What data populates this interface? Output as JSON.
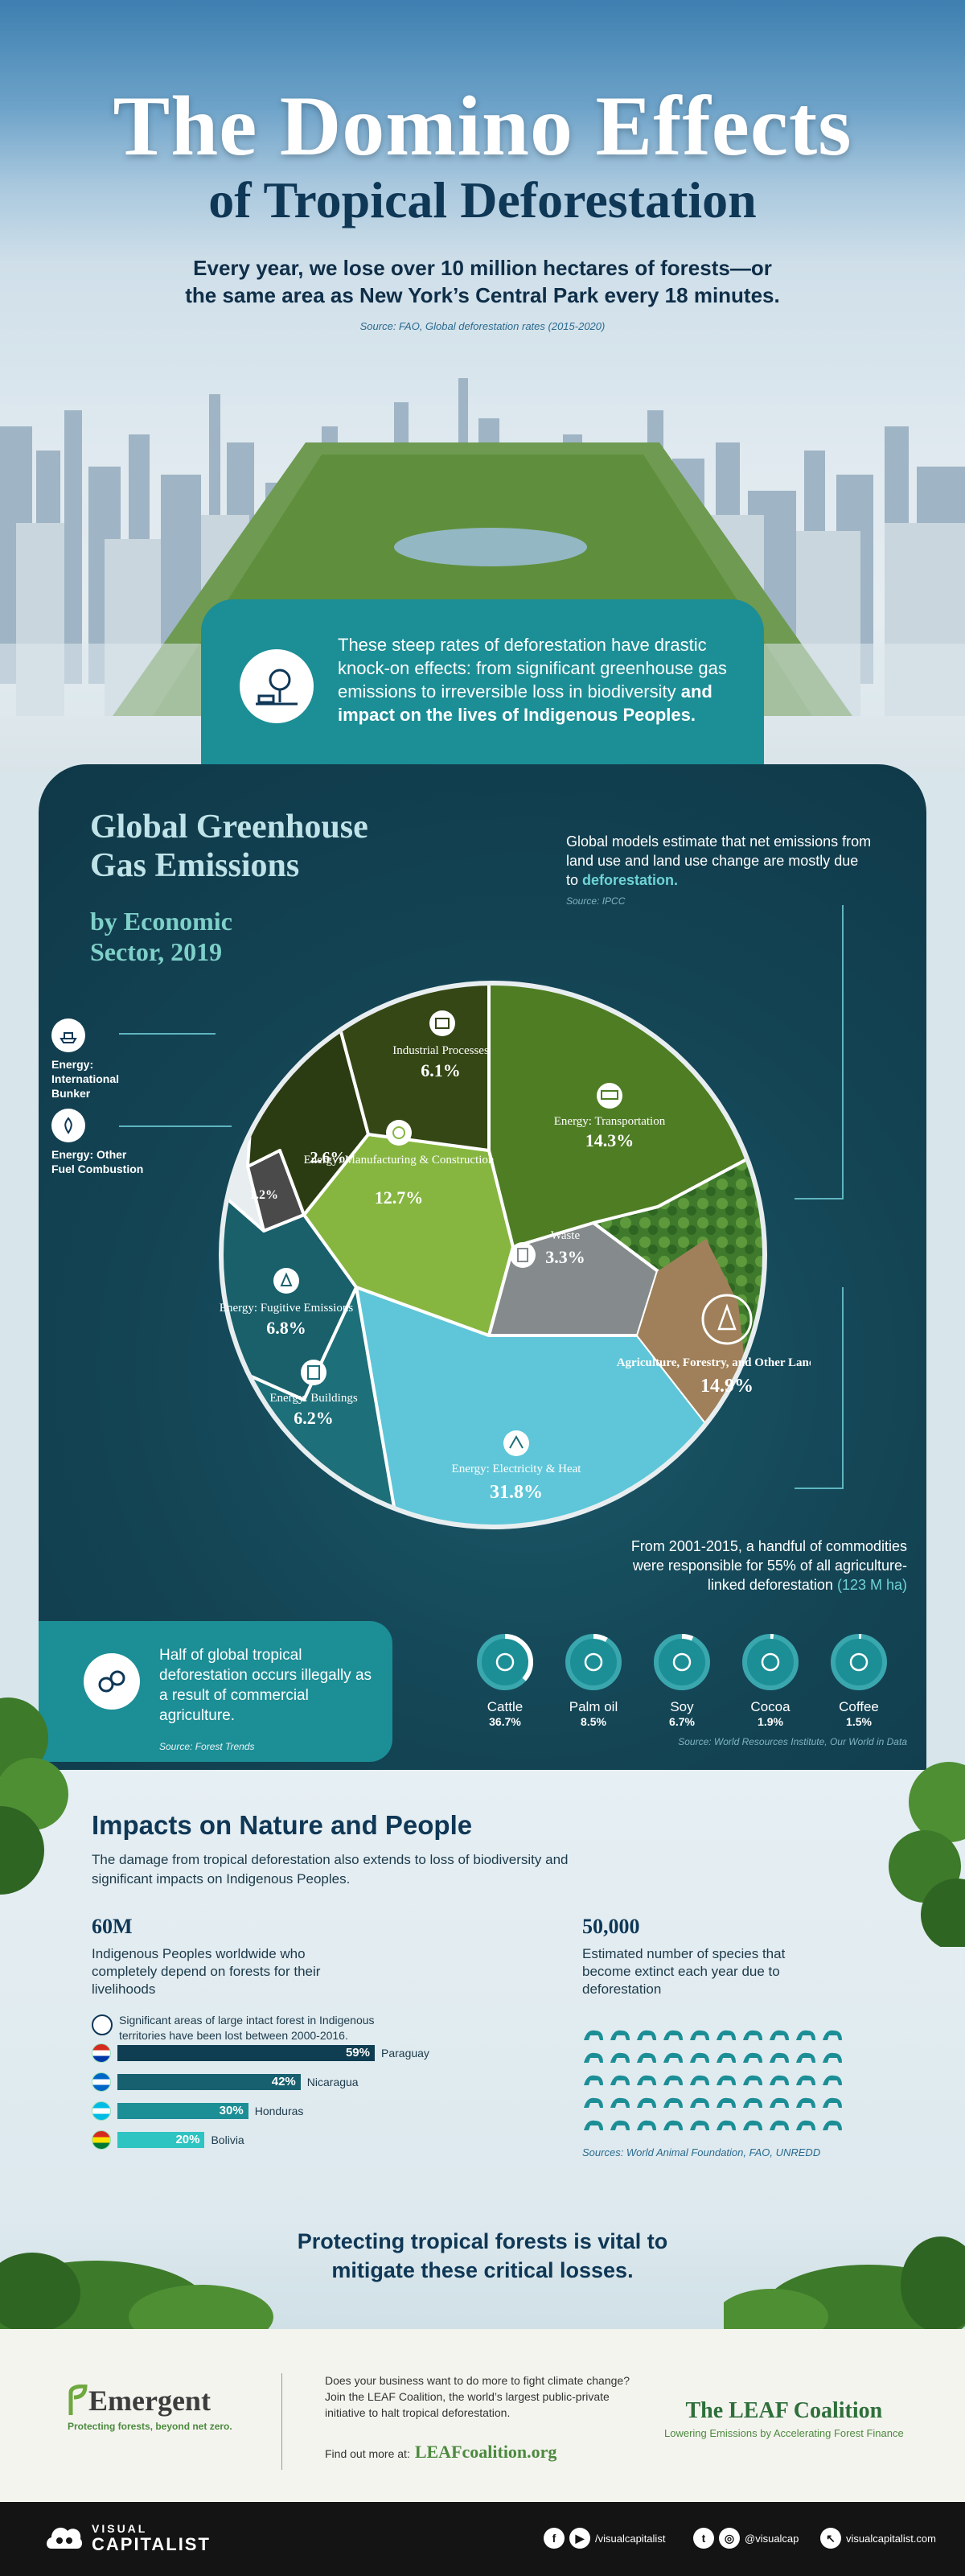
{
  "hero": {
    "title": "The Domino Effects",
    "subtitle": "of Tropical Deforestation",
    "lede": "Every year, we lose over 10 million hectares of forests—or the same area as New York’s Central Park every 18 minutes.",
    "source": "Source: FAO, Global deforestation rates (2015-2020)"
  },
  "intro": {
    "text": "These steep rates of deforestation have drastic knock-on effects: from significant greenhouse gas emissions to irreversible loss in biodiversity ",
    "highlight": "and impact on the lives of Indigenous Peoples."
  },
  "ghg": {
    "title_line1": "Global Greenhouse",
    "title_line2": "Gas Emissions",
    "subtitle_line1": "by Economic",
    "subtitle_line2": "Sector, 2019",
    "note": "Global models estimate that net emissions from land use and land use change are mostly due to ",
    "note_highlight": "deforestation.",
    "note_source": "Source: IPCC",
    "outside_labels": [
      {
        "label": "Energy: International Bunker"
      },
      {
        "label": "Energy: Other Fuel Combustion"
      }
    ],
    "commodities_note": "From 2001-2015, a handful of commodities were responsible for 55% of all agriculture-linked deforestation",
    "commodities_note_highlight": " (123 M ha)"
  },
  "chart_data": {
    "type": "pie",
    "title": "Global Greenhouse Gas Emissions by Economic Sector, 2019",
    "unit": "%",
    "slices": [
      {
        "label": "Energy: Electricity & Heat",
        "value": 31.8,
        "color": "#5ec6d8"
      },
      {
        "label": "Energy: Buildings",
        "value": 6.2,
        "color": "#1d6f79"
      },
      {
        "label": "Energy: Fugitive Emissions",
        "value": 6.8,
        "color": "#19606b"
      },
      {
        "label": "Energy: Manufacturing & Construction",
        "value": 12.7,
        "color": "#86b640"
      },
      {
        "label": "Energy: Other Fuel Combustion",
        "value": 1.2,
        "color": "#4a4a4a"
      },
      {
        "label": "Energy: International Bunker",
        "value": 2.6,
        "color": "#2c3c12"
      },
      {
        "label": "Industrial Processes",
        "value": 6.1,
        "color": "#354715"
      },
      {
        "label": "Energy: Transportation",
        "value": 14.3,
        "color": "#4f7d24"
      },
      {
        "label": "Waste",
        "value": 3.3,
        "color": "#858b8c"
      },
      {
        "label": "Agriculture, Forestry, and Other Land Use",
        "value": 14.9,
        "color": "#8a6b3e"
      }
    ],
    "labels": {
      "international_bunker": "2.6%",
      "other_fuel": "1.2%",
      "industrial_name": "Industrial Processes",
      "industrial_val": "6.1%",
      "transport_name": "Energy: Transportation",
      "transport_val": "14.3%",
      "manuf_name": "Energy: Manufacturing & Construction",
      "manuf_val": "12.7%",
      "waste_name": "Waste",
      "waste_val": "3.3%",
      "fugitive_name": "Energy: Fugitive Emissions",
      "fugitive_val": "6.8%",
      "agri_name": "Agriculture, Forestry, and Other Land Use",
      "agri_val": "14.9%",
      "buildings_name": "Energy: Buildings",
      "buildings_val": "6.2%",
      "electricity_name": "Energy: Electricity & Heat",
      "electricity_val": "31.8%"
    }
  },
  "commodities": {
    "items": [
      {
        "name": "Cattle",
        "pct": "36.7%",
        "share": 36.7
      },
      {
        "name": "Palm oil",
        "pct": "8.5%",
        "share": 8.5
      },
      {
        "name": "Soy",
        "pct": "6.7%",
        "share": 6.7
      },
      {
        "name": "Cocoa",
        "pct": "1.9%",
        "share": 1.9
      },
      {
        "name": "Coffee",
        "pct": "1.5%",
        "share": 1.5
      }
    ],
    "source": "Source: World Resources Institute, Our World in Data"
  },
  "half": {
    "text": "Half of global tropical deforestation occurs illegally as a result of commercial agriculture.",
    "source": "Source: Forest Trends"
  },
  "impacts": {
    "title": "Impacts on Nature and People",
    "lede": "The damage from tropical deforestation also extends to loss of biodiversity and significant impacts on Indigenous Peoples.",
    "stat1": "60M",
    "stat1_desc": "Indigenous Peoples worldwide who completely depend on forests for their livelihoods",
    "stat2": "50,000",
    "stat2_desc": "Estimated number of species that become extinct each year due to deforestation",
    "loss_note": "Significant areas of large intact forest in Indigenous territories have been lost between 2000-2016.",
    "countries": [
      {
        "name": "Paraguay",
        "pct": "59%",
        "value": 59,
        "color": "#0f3d52"
      },
      {
        "name": "Nicaragua",
        "pct": "42%",
        "value": 42,
        "color": "#17606f"
      },
      {
        "name": "Honduras",
        "pct": "30%",
        "value": 30,
        "color": "#1c8e96"
      },
      {
        "name": "Bolivia",
        "pct": "20%",
        "value": 20,
        "color": "#2ec4c2"
      }
    ],
    "species_source": "Sources: World Animal Foundation, FAO, UNREDD",
    "closing": "Protecting tropical forests is vital to mitigate these critical losses."
  },
  "sponsor": {
    "emergent_name": "Emergent",
    "emergent_tag": "Protecting forests, beyond net zero.",
    "copy": "Does your business want to do more to fight climate change? Join the LEAF Coalition, the world’s largest public-private initiative to halt tropical deforestation.",
    "find_more": "Find out more at:",
    "url": "LEAFcoalition.org",
    "leaf_name": "The LEAF Coalition",
    "leaf_tag": "Lowering Emissions by Accelerating Forest Finance"
  },
  "footer": {
    "brand_top": "VISUAL",
    "brand_bottom": "CAPITALIST",
    "social1": "/visualcapitalist",
    "social2": "@visualcap",
    "social3": "visualcapitalist.com"
  },
  "colors": {
    "teal": "#1c8e96",
    "navy": "#0f3756",
    "forest": "#4c8a3e"
  }
}
